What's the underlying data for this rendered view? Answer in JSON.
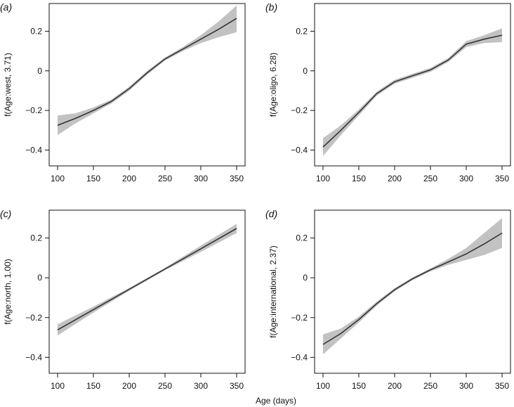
{
  "figure": {
    "xlabel": "Age (days)"
  },
  "chart_data": [
    {
      "type": "line",
      "panel_label": "(a)",
      "ylabel": "f(Age:west, 3.71)",
      "xlim": [
        100,
        350
      ],
      "ylim": [
        -0.48,
        0.34
      ],
      "xticks": [
        100,
        150,
        200,
        250,
        300,
        350
      ],
      "yticks": [
        -0.4,
        -0.2,
        0,
        0.2
      ],
      "ytick_labels": [
        "−0.4",
        "−0.2",
        "0",
        "0.2"
      ],
      "x": [
        100,
        125,
        150,
        175,
        200,
        225,
        250,
        275,
        300,
        325,
        350
      ],
      "y": [
        -0.275,
        -0.24,
        -0.2,
        -0.155,
        -0.09,
        -0.01,
        0.06,
        0.11,
        0.16,
        0.21,
        0.265
      ],
      "lower": [
        -0.325,
        -0.265,
        -0.215,
        -0.165,
        -0.1,
        -0.02,
        0.052,
        0.1,
        0.14,
        0.17,
        0.195
      ],
      "upper": [
        -0.225,
        -0.215,
        -0.185,
        -0.145,
        -0.08,
        0.0,
        0.068,
        0.12,
        0.18,
        0.25,
        0.33
      ]
    },
    {
      "type": "line",
      "panel_label": "(b)",
      "ylabel": "f(Age:oligo, 6.28)",
      "xlim": [
        100,
        350
      ],
      "ylim": [
        -0.48,
        0.34
      ],
      "xticks": [
        100,
        150,
        200,
        250,
        300,
        350
      ],
      "yticks": [
        -0.4,
        -0.2,
        0,
        0.2
      ],
      "ytick_labels": [
        "−0.4",
        "−0.2",
        "0",
        "0.2"
      ],
      "x": [
        100,
        125,
        150,
        175,
        200,
        225,
        250,
        275,
        300,
        325,
        350
      ],
      "y": [
        -0.385,
        -0.3,
        -0.21,
        -0.115,
        -0.055,
        -0.025,
        0.005,
        0.055,
        0.135,
        0.16,
        0.18
      ],
      "lower": [
        -0.43,
        -0.325,
        -0.225,
        -0.125,
        -0.065,
        -0.035,
        -0.005,
        0.045,
        0.12,
        0.14,
        0.145
      ],
      "upper": [
        -0.34,
        -0.275,
        -0.195,
        -0.105,
        -0.045,
        -0.015,
        0.015,
        0.065,
        0.15,
        0.18,
        0.215
      ]
    },
    {
      "type": "line",
      "panel_label": "(c)",
      "ylabel": "f(Age:north, 1.00)",
      "xlim": [
        100,
        350
      ],
      "ylim": [
        -0.48,
        0.34
      ],
      "xticks": [
        100,
        150,
        200,
        250,
        300,
        350
      ],
      "yticks": [
        -0.4,
        -0.2,
        0,
        0.2
      ],
      "ytick_labels": [
        "−0.4",
        "−0.2",
        "0",
        "0.2"
      ],
      "x": [
        100,
        150,
        200,
        250,
        300,
        350
      ],
      "y": [
        -0.262,
        -0.16,
        -0.058,
        0.044,
        0.146,
        0.248
      ],
      "lower": [
        -0.29,
        -0.175,
        -0.065,
        0.038,
        0.13,
        0.225
      ],
      "upper": [
        -0.234,
        -0.145,
        -0.051,
        0.05,
        0.162,
        0.271
      ]
    },
    {
      "type": "line",
      "panel_label": "(d)",
      "ylabel": "f(Age:international, 2.37)",
      "xlim": [
        100,
        350
      ],
      "ylim": [
        -0.48,
        0.34
      ],
      "xticks": [
        100,
        150,
        200,
        250,
        300,
        350
      ],
      "yticks": [
        -0.4,
        -0.2,
        0,
        0.2
      ],
      "ytick_labels": [
        "−0.4",
        "−0.2",
        "0",
        "0.2"
      ],
      "x": [
        100,
        125,
        150,
        175,
        200,
        225,
        250,
        275,
        300,
        325,
        350
      ],
      "y": [
        -0.335,
        -0.28,
        -0.21,
        -0.13,
        -0.06,
        -0.005,
        0.04,
        0.08,
        0.12,
        0.17,
        0.225
      ],
      "lower": [
        -0.385,
        -0.305,
        -0.225,
        -0.14,
        -0.068,
        -0.012,
        0.033,
        0.065,
        0.09,
        0.115,
        0.15
      ],
      "upper": [
        -0.285,
        -0.255,
        -0.195,
        -0.12,
        -0.052,
        0.002,
        0.047,
        0.095,
        0.15,
        0.225,
        0.3
      ]
    }
  ]
}
